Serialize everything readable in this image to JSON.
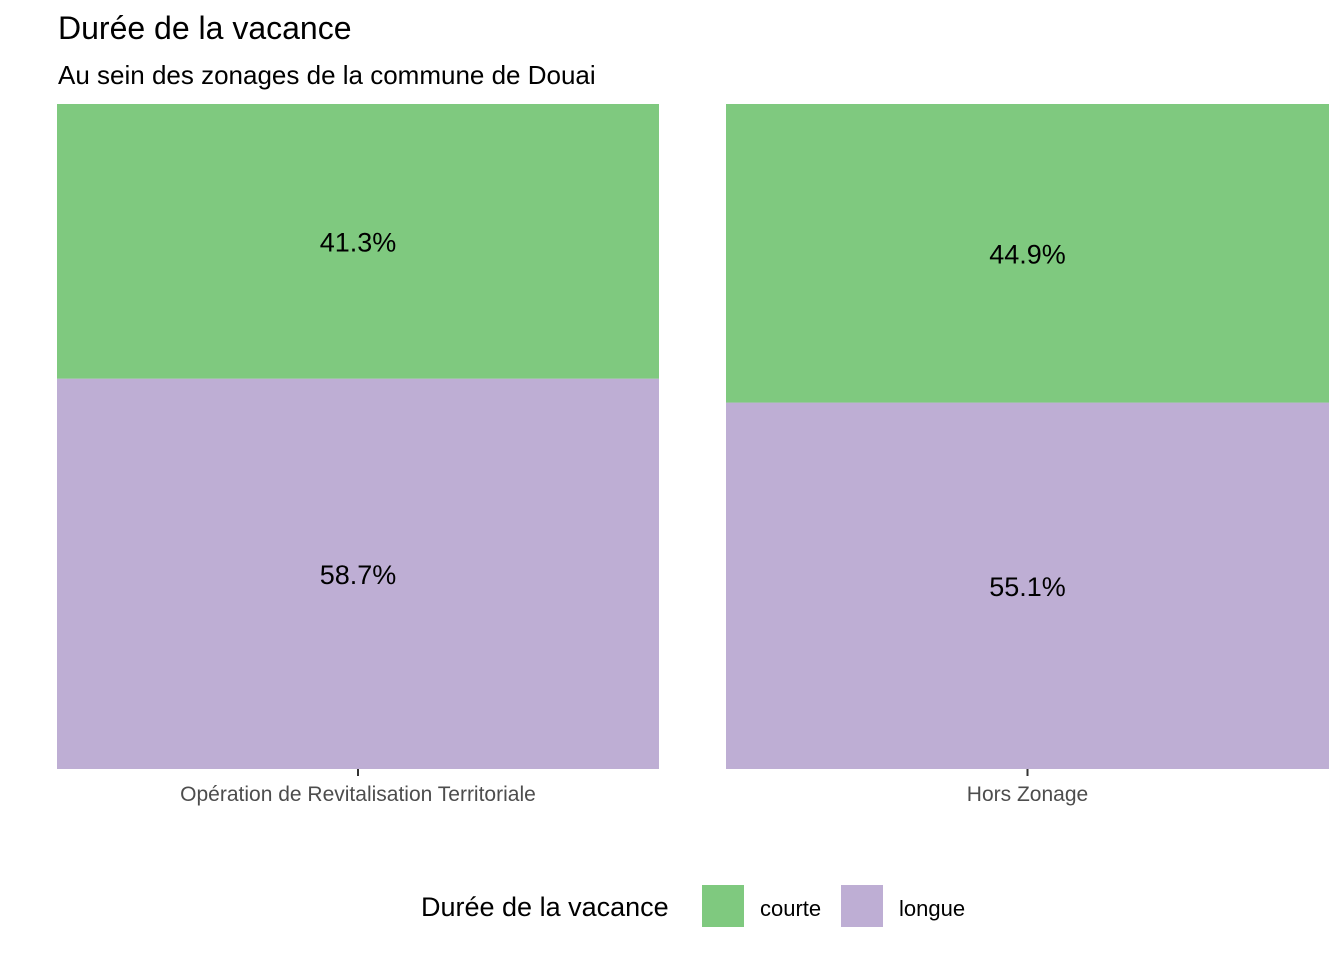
{
  "chart_data": {
    "type": "bar",
    "stacked": true,
    "normalized": true,
    "title": "Durée de la vacance",
    "subtitle": "Au sein des zonages de la commune de Douai",
    "categories": [
      "Opération de Revitalisation Territoriale",
      "Hors Zonage"
    ],
    "series": [
      {
        "name": "courte",
        "color": "#7fc97f",
        "values": [
          41.3,
          44.9
        ],
        "labels": [
          "41.3%",
          "44.9%"
        ]
      },
      {
        "name": "longue",
        "color": "#beaed4",
        "values": [
          58.7,
          55.1
        ],
        "labels": [
          "58.7%",
          "55.1%"
        ]
      }
    ],
    "ylim": [
      0,
      100
    ],
    "grid": false,
    "legend": {
      "title": "Durée de la vacance",
      "position": "bottom",
      "entries": [
        "courte",
        "longue"
      ]
    }
  }
}
